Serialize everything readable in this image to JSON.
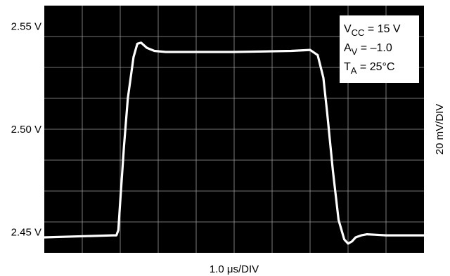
{
  "chart_data": {
    "type": "line",
    "title": "",
    "xlabel": "1.0 μs/DIV",
    "ylabel": "20 mV/DIV",
    "grid": true,
    "x_divisions": 10,
    "y_divisions": 8,
    "xlim": [
      0,
      10
    ],
    "ylim": [
      2.44,
      2.56
    ],
    "y_ticks": [
      {
        "value": 2.45,
        "label": "2.45 V"
      },
      {
        "value": 2.5,
        "label": "2.50 V"
      },
      {
        "value": 2.55,
        "label": "2.55 V"
      }
    ],
    "legend_position": "top-right",
    "annotations": [
      {
        "main": "V",
        "sub": "CC",
        "rest": " = 15 V"
      },
      {
        "main": "A",
        "sub": "V",
        "rest": " = –1.0"
      },
      {
        "main": "T",
        "sub": "A",
        "rest": " = 25°C"
      }
    ],
    "colors": {
      "background": "#000000",
      "grid": "#9a9a9a",
      "trace": "#ffffff"
    },
    "series": [
      {
        "x": [
          0,
          1.8,
          1.9,
          1.95,
          2.0,
          2.1,
          2.2,
          2.35,
          2.45,
          2.55,
          2.7,
          2.9,
          3.2,
          5.0,
          6.5,
          7.0,
          7.2,
          7.35,
          7.45,
          7.6,
          7.75,
          7.9,
          8.0,
          8.1,
          8.2,
          8.35,
          8.5,
          8.7,
          9.0,
          10.0
        ],
        "y": [
          2.4475,
          2.4485,
          2.4485,
          2.451,
          2.465,
          2.492,
          2.515,
          2.535,
          2.5415,
          2.542,
          2.5395,
          2.538,
          2.5375,
          2.5375,
          2.538,
          2.5385,
          2.536,
          2.525,
          2.508,
          2.48,
          2.456,
          2.4465,
          2.4445,
          2.4455,
          2.4475,
          2.4485,
          2.449,
          2.4488,
          2.4485,
          2.4485
        ]
      }
    ]
  }
}
